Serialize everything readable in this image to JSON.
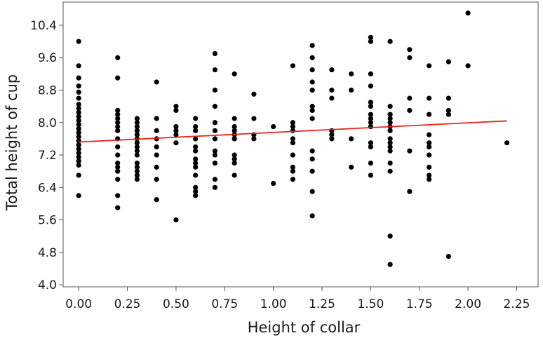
{
  "chart_data": {
    "type": "scatter",
    "title": "",
    "xlabel": "Height of collar",
    "ylabel": "Total height of cup",
    "xlim": [
      -0.08,
      2.36
    ],
    "ylim": [
      3.95,
      10.97
    ],
    "x_ticks": [
      0.0,
      0.25,
      0.5,
      0.75,
      1.0,
      1.25,
      1.5,
      1.75,
      2.0,
      2.25
    ],
    "x_tick_labels": [
      "0.00",
      "0.25",
      "0.50",
      "0.75",
      "1.00",
      "1.25",
      "1.50",
      "1.75",
      "2.00",
      "2.25"
    ],
    "y_ticks": [
      4.0,
      4.8,
      5.6,
      6.4,
      7.2,
      8.0,
      8.8,
      9.6,
      10.4
    ],
    "y_tick_labels": [
      "4.0",
      "4.8",
      "5.6",
      "6.4",
      "7.2",
      "8.0",
      "8.8",
      "9.6",
      "10.4"
    ],
    "grid": false,
    "legend": "none",
    "colors": {
      "points": "#000000",
      "fit_line": "#e8221b",
      "frame": "#555555"
    },
    "points": [
      {
        "x": 0.0,
        "y": 10.0
      },
      {
        "x": 0.0,
        "y": 9.4
      },
      {
        "x": 0.0,
        "y": 9.1
      },
      {
        "x": 0.0,
        "y": 8.9
      },
      {
        "x": 0.0,
        "y": 8.75
      },
      {
        "x": 0.0,
        "y": 8.6
      },
      {
        "x": 0.0,
        "y": 8.45
      },
      {
        "x": 0.0,
        "y": 8.35
      },
      {
        "x": 0.0,
        "y": 8.25
      },
      {
        "x": 0.0,
        "y": 8.15
      },
      {
        "x": 0.0,
        "y": 8.05
      },
      {
        "x": 0.0,
        "y": 7.95
      },
      {
        "x": 0.0,
        "y": 7.85
      },
      {
        "x": 0.0,
        "y": 7.75
      },
      {
        "x": 0.0,
        "y": 7.65
      },
      {
        "x": 0.0,
        "y": 7.55
      },
      {
        "x": 0.0,
        "y": 7.45
      },
      {
        "x": 0.0,
        "y": 7.35
      },
      {
        "x": 0.0,
        "y": 7.25
      },
      {
        "x": 0.0,
        "y": 7.15
      },
      {
        "x": 0.0,
        "y": 7.05
      },
      {
        "x": 0.0,
        "y": 6.95
      },
      {
        "x": 0.0,
        "y": 6.7
      },
      {
        "x": 0.0,
        "y": 6.2
      },
      {
        "x": 0.2,
        "y": 9.6
      },
      {
        "x": 0.2,
        "y": 9.1
      },
      {
        "x": 0.2,
        "y": 8.3
      },
      {
        "x": 0.2,
        "y": 8.2
      },
      {
        "x": 0.2,
        "y": 8.1
      },
      {
        "x": 0.2,
        "y": 8.0
      },
      {
        "x": 0.2,
        "y": 7.9
      },
      {
        "x": 0.2,
        "y": 7.8
      },
      {
        "x": 0.2,
        "y": 7.6
      },
      {
        "x": 0.2,
        "y": 7.4
      },
      {
        "x": 0.2,
        "y": 7.2
      },
      {
        "x": 0.2,
        "y": 7.0
      },
      {
        "x": 0.2,
        "y": 6.9
      },
      {
        "x": 0.2,
        "y": 6.8
      },
      {
        "x": 0.2,
        "y": 6.6
      },
      {
        "x": 0.2,
        "y": 6.2
      },
      {
        "x": 0.2,
        "y": 5.9
      },
      {
        "x": 0.3,
        "y": 8.1
      },
      {
        "x": 0.3,
        "y": 8.0
      },
      {
        "x": 0.3,
        "y": 7.9
      },
      {
        "x": 0.3,
        "y": 7.8
      },
      {
        "x": 0.3,
        "y": 7.7
      },
      {
        "x": 0.3,
        "y": 7.6
      },
      {
        "x": 0.3,
        "y": 7.5
      },
      {
        "x": 0.3,
        "y": 7.4
      },
      {
        "x": 0.3,
        "y": 7.3
      },
      {
        "x": 0.3,
        "y": 7.2
      },
      {
        "x": 0.3,
        "y": 7.0
      },
      {
        "x": 0.3,
        "y": 6.9
      },
      {
        "x": 0.3,
        "y": 6.8
      },
      {
        "x": 0.3,
        "y": 6.7
      },
      {
        "x": 0.3,
        "y": 6.6
      },
      {
        "x": 0.4,
        "y": 9.0
      },
      {
        "x": 0.4,
        "y": 8.1
      },
      {
        "x": 0.4,
        "y": 7.8
      },
      {
        "x": 0.4,
        "y": 7.6
      },
      {
        "x": 0.4,
        "y": 7.4
      },
      {
        "x": 0.4,
        "y": 7.2
      },
      {
        "x": 0.4,
        "y": 6.9
      },
      {
        "x": 0.4,
        "y": 6.6
      },
      {
        "x": 0.4,
        "y": 6.1
      },
      {
        "x": 0.5,
        "y": 8.4
      },
      {
        "x": 0.5,
        "y": 8.3
      },
      {
        "x": 0.5,
        "y": 7.9
      },
      {
        "x": 0.5,
        "y": 7.8
      },
      {
        "x": 0.5,
        "y": 7.7
      },
      {
        "x": 0.5,
        "y": 7.5
      },
      {
        "x": 0.5,
        "y": 5.6
      },
      {
        "x": 0.6,
        "y": 8.1
      },
      {
        "x": 0.6,
        "y": 7.9
      },
      {
        "x": 0.6,
        "y": 7.8
      },
      {
        "x": 0.6,
        "y": 7.6
      },
      {
        "x": 0.6,
        "y": 7.4
      },
      {
        "x": 0.6,
        "y": 7.3
      },
      {
        "x": 0.6,
        "y": 7.1
      },
      {
        "x": 0.6,
        "y": 7.0
      },
      {
        "x": 0.6,
        "y": 6.9
      },
      {
        "x": 0.6,
        "y": 6.7
      },
      {
        "x": 0.6,
        "y": 6.4
      },
      {
        "x": 0.6,
        "y": 6.3
      },
      {
        "x": 0.6,
        "y": 6.2
      },
      {
        "x": 0.7,
        "y": 9.7
      },
      {
        "x": 0.7,
        "y": 9.3
      },
      {
        "x": 0.7,
        "y": 8.8
      },
      {
        "x": 0.7,
        "y": 8.4
      },
      {
        "x": 0.7,
        "y": 8.0
      },
      {
        "x": 0.7,
        "y": 7.8
      },
      {
        "x": 0.7,
        "y": 7.6
      },
      {
        "x": 0.7,
        "y": 7.3
      },
      {
        "x": 0.7,
        "y": 7.2
      },
      {
        "x": 0.7,
        "y": 7.0
      },
      {
        "x": 0.7,
        "y": 6.6
      },
      {
        "x": 0.7,
        "y": 6.4
      },
      {
        "x": 0.8,
        "y": 9.2
      },
      {
        "x": 0.8,
        "y": 8.1
      },
      {
        "x": 0.8,
        "y": 7.9
      },
      {
        "x": 0.8,
        "y": 7.8
      },
      {
        "x": 0.8,
        "y": 7.7
      },
      {
        "x": 0.8,
        "y": 7.6
      },
      {
        "x": 0.8,
        "y": 7.2
      },
      {
        "x": 0.8,
        "y": 7.1
      },
      {
        "x": 0.8,
        "y": 7.0
      },
      {
        "x": 0.8,
        "y": 6.7
      },
      {
        "x": 0.9,
        "y": 8.7
      },
      {
        "x": 0.9,
        "y": 8.1
      },
      {
        "x": 0.9,
        "y": 7.7
      },
      {
        "x": 0.9,
        "y": 7.6
      },
      {
        "x": 1.0,
        "y": 7.9
      },
      {
        "x": 1.0,
        "y": 6.5
      },
      {
        "x": 1.1,
        "y": 9.4
      },
      {
        "x": 1.1,
        "y": 8.0
      },
      {
        "x": 1.1,
        "y": 7.9
      },
      {
        "x": 1.1,
        "y": 7.8
      },
      {
        "x": 1.1,
        "y": 7.6
      },
      {
        "x": 1.1,
        "y": 7.5
      },
      {
        "x": 1.1,
        "y": 7.2
      },
      {
        "x": 1.1,
        "y": 6.9
      },
      {
        "x": 1.1,
        "y": 6.8
      },
      {
        "x": 1.1,
        "y": 6.6
      },
      {
        "x": 1.2,
        "y": 9.9
      },
      {
        "x": 1.2,
        "y": 9.6
      },
      {
        "x": 1.2,
        "y": 9.3
      },
      {
        "x": 1.2,
        "y": 9.0
      },
      {
        "x": 1.2,
        "y": 8.8
      },
      {
        "x": 1.2,
        "y": 8.4
      },
      {
        "x": 1.2,
        "y": 8.3
      },
      {
        "x": 1.2,
        "y": 8.1
      },
      {
        "x": 1.2,
        "y": 7.3
      },
      {
        "x": 1.2,
        "y": 7.1
      },
      {
        "x": 1.2,
        "y": 6.8
      },
      {
        "x": 1.2,
        "y": 6.3
      },
      {
        "x": 1.2,
        "y": 5.7
      },
      {
        "x": 1.3,
        "y": 9.3
      },
      {
        "x": 1.3,
        "y": 8.8
      },
      {
        "x": 1.3,
        "y": 8.6
      },
      {
        "x": 1.3,
        "y": 7.8
      },
      {
        "x": 1.3,
        "y": 7.7
      },
      {
        "x": 1.3,
        "y": 7.6
      },
      {
        "x": 1.4,
        "y": 9.2
      },
      {
        "x": 1.4,
        "y": 8.8
      },
      {
        "x": 1.4,
        "y": 7.6
      },
      {
        "x": 1.4,
        "y": 6.9
      },
      {
        "x": 1.5,
        "y": 10.1
      },
      {
        "x": 1.5,
        "y": 10.0
      },
      {
        "x": 1.5,
        "y": 9.2
      },
      {
        "x": 1.5,
        "y": 8.9
      },
      {
        "x": 1.5,
        "y": 8.5
      },
      {
        "x": 1.5,
        "y": 8.4
      },
      {
        "x": 1.5,
        "y": 8.2
      },
      {
        "x": 1.5,
        "y": 8.1
      },
      {
        "x": 1.5,
        "y": 8.0
      },
      {
        "x": 1.5,
        "y": 7.9
      },
      {
        "x": 1.5,
        "y": 7.5
      },
      {
        "x": 1.5,
        "y": 7.4
      },
      {
        "x": 1.5,
        "y": 7.0
      },
      {
        "x": 1.5,
        "y": 6.7
      },
      {
        "x": 1.6,
        "y": 10.0
      },
      {
        "x": 1.6,
        "y": 8.4
      },
      {
        "x": 1.6,
        "y": 8.2
      },
      {
        "x": 1.6,
        "y": 8.1
      },
      {
        "x": 1.6,
        "y": 8.0
      },
      {
        "x": 1.6,
        "y": 7.9
      },
      {
        "x": 1.6,
        "y": 7.8
      },
      {
        "x": 1.6,
        "y": 7.6
      },
      {
        "x": 1.6,
        "y": 7.5
      },
      {
        "x": 1.6,
        "y": 7.4
      },
      {
        "x": 1.6,
        "y": 7.3
      },
      {
        "x": 1.6,
        "y": 7.0
      },
      {
        "x": 1.6,
        "y": 6.8
      },
      {
        "x": 1.6,
        "y": 5.2
      },
      {
        "x": 1.6,
        "y": 4.5
      },
      {
        "x": 1.7,
        "y": 9.8
      },
      {
        "x": 1.7,
        "y": 9.6
      },
      {
        "x": 1.7,
        "y": 8.6
      },
      {
        "x": 1.7,
        "y": 8.3
      },
      {
        "x": 1.7,
        "y": 7.3
      },
      {
        "x": 1.7,
        "y": 6.3
      },
      {
        "x": 1.8,
        "y": 9.4
      },
      {
        "x": 1.8,
        "y": 8.6
      },
      {
        "x": 1.8,
        "y": 8.2
      },
      {
        "x": 1.8,
        "y": 7.7
      },
      {
        "x": 1.8,
        "y": 7.5
      },
      {
        "x": 1.8,
        "y": 7.4
      },
      {
        "x": 1.8,
        "y": 7.2
      },
      {
        "x": 1.8,
        "y": 6.9
      },
      {
        "x": 1.8,
        "y": 6.7
      },
      {
        "x": 1.8,
        "y": 6.6
      },
      {
        "x": 1.9,
        "y": 9.5
      },
      {
        "x": 1.9,
        "y": 8.6
      },
      {
        "x": 1.9,
        "y": 8.3
      },
      {
        "x": 1.9,
        "y": 8.2
      },
      {
        "x": 1.9,
        "y": 4.7
      },
      {
        "x": 2.0,
        "y": 10.7
      },
      {
        "x": 2.0,
        "y": 9.4
      },
      {
        "x": 2.2,
        "y": 7.5
      }
    ],
    "fit_line": {
      "x": [
        0.0,
        2.2
      ],
      "y": [
        7.52,
        8.04
      ]
    }
  }
}
